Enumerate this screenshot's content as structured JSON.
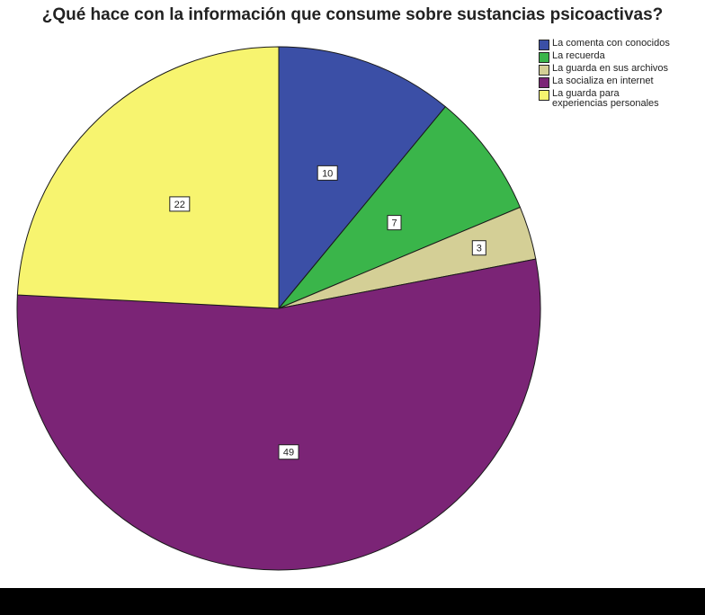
{
  "chart_data": {
    "type": "pie",
    "title": "¿Qué hace con la información que consume sobre sustancias psicoactivas?",
    "legend_position": "top-right",
    "slices": [
      {
        "label": "La comenta con conocidos",
        "value": 10,
        "color": "#3b4fa6"
      },
      {
        "label": "La recuerda",
        "value": 7,
        "color": "#3ab54a"
      },
      {
        "label": "La guarda en sus archivos",
        "value": 3,
        "color": "#d4cf96"
      },
      {
        "label": "La socializa en internet",
        "value": 49,
        "color": "#7b2476"
      },
      {
        "label": "La guarda para\nexperiencias personales",
        "value": 22,
        "color": "#f7f46f"
      }
    ]
  }
}
